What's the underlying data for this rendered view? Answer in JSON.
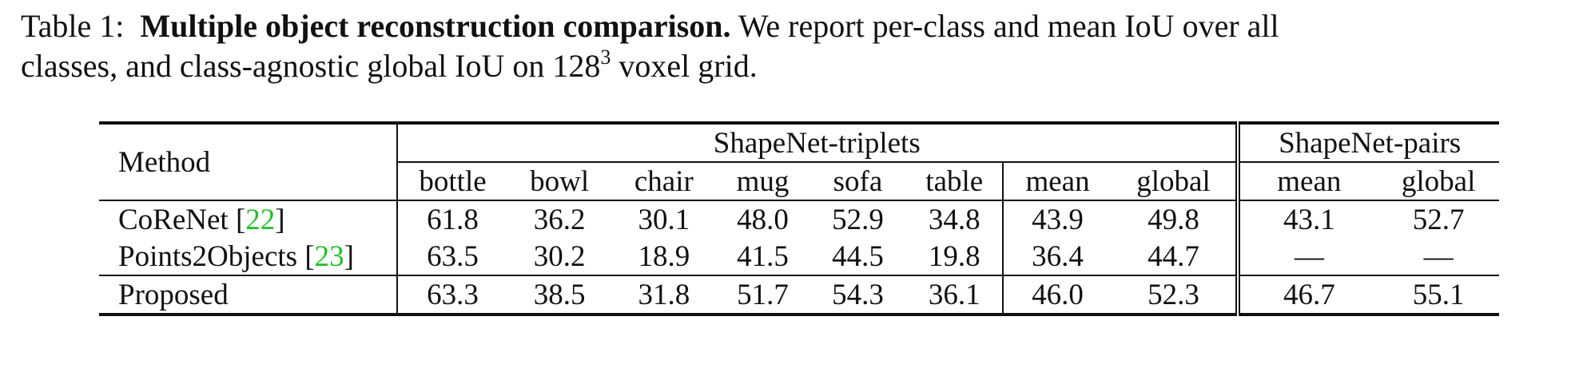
{
  "caption": {
    "label": "Table 1:",
    "title": "Multiple object reconstruction comparison.",
    "text1": "We report per-class and mean IoU over all",
    "text2": "classes, and class-agnostic global IoU on 128",
    "sup": "3",
    "text3": "voxel grid."
  },
  "table": {
    "method_header": "Method",
    "group1": "ShapeNet-triplets",
    "group2": "ShapeNet-pairs",
    "columns": [
      "bottle",
      "bowl",
      "chair",
      "mug",
      "sofa",
      "table",
      "mean",
      "global",
      "mean",
      "global"
    ],
    "rows": [
      {
        "method": "CoReNet",
        "cite": "22",
        "values": [
          "61.8",
          "36.2",
          "30.1",
          "48.0",
          "52.9",
          "34.8",
          "43.9",
          "49.8",
          "43.1",
          "52.7"
        ]
      },
      {
        "method": "Points2Objects",
        "cite": "23",
        "values": [
          "63.5",
          "30.2",
          "18.9",
          "41.5",
          "44.5",
          "19.8",
          "36.4",
          "44.7",
          "—",
          "—"
        ]
      },
      {
        "method": "Proposed",
        "cite": "",
        "values": [
          "63.3",
          "38.5",
          "31.8",
          "51.7",
          "54.3",
          "36.1",
          "46.0",
          "52.3",
          "46.7",
          "55.1"
        ]
      }
    ]
  }
}
